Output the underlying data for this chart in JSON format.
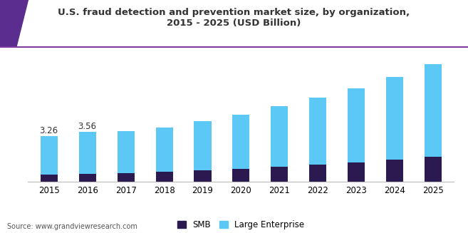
{
  "title_line1": "U.S. fraud detection and prevention market size, by organization,",
  "title_line2": "2015 - 2025 (USD Billion)",
  "years": [
    2015,
    2016,
    2017,
    2018,
    2019,
    2020,
    2021,
    2022,
    2023,
    2024,
    2025
  ],
  "smb": [
    0.52,
    0.57,
    0.63,
    0.7,
    0.8,
    0.92,
    1.07,
    1.23,
    1.4,
    1.58,
    1.78
  ],
  "large_enterprise": [
    2.74,
    2.99,
    2.97,
    3.16,
    3.55,
    3.88,
    4.33,
    4.77,
    5.3,
    5.92,
    6.62
  ],
  "bar_color_smb": "#2b1a4f",
  "bar_color_large": "#5bc8f5",
  "annotation_2015": "3.26",
  "annotation_2016": "3.56",
  "source_text": "Source: www.grandviewresearch.com",
  "legend_smb": "SMB",
  "legend_large": "Large Enterprise",
  "title_color": "#333333",
  "bar_width": 0.45,
  "ylim": [
    0,
    9.0
  ],
  "title_fontsize": 9.5,
  "tick_fontsize": 8.5,
  "source_fontsize": 7.0,
  "legend_fontsize": 8.5,
  "header_line_color": "#7b3fa0",
  "header_bg_color": "#f8f8fa"
}
